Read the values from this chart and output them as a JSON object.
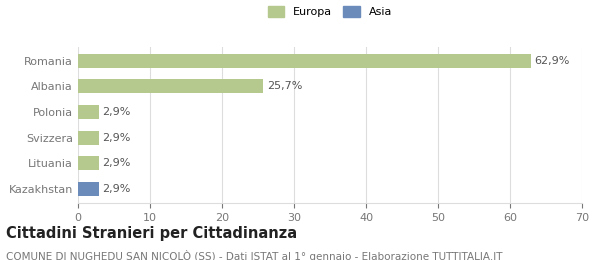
{
  "categories": [
    "Romania",
    "Albania",
    "Polonia",
    "Svizzera",
    "Lituania",
    "Kazakhstan"
  ],
  "values": [
    62.9,
    25.7,
    2.9,
    2.9,
    2.9,
    2.9
  ],
  "bar_colors": [
    "#b5c98e",
    "#b5c98e",
    "#b5c98e",
    "#b5c98e",
    "#b5c98e",
    "#6b8cba"
  ],
  "bar_labels": [
    "62,9%",
    "25,7%",
    "2,9%",
    "2,9%",
    "2,9%",
    "2,9%"
  ],
  "legend_labels": [
    "Europa",
    "Asia"
  ],
  "legend_colors": [
    "#b5c98e",
    "#6b8cba"
  ],
  "xlim": [
    0,
    70
  ],
  "xticks": [
    0,
    10,
    20,
    30,
    40,
    50,
    60,
    70
  ],
  "title": "Cittadini Stranieri per Cittadinanza",
  "subtitle": "COMUNE DI NUGHEDU SAN NICOLÒ (SS) - Dati ISTAT al 1° gennaio - Elaborazione TUTTITALIA.IT",
  "title_fontsize": 10.5,
  "subtitle_fontsize": 7.5,
  "label_fontsize": 8,
  "tick_fontsize": 8,
  "background_color": "#ffffff",
  "grid_color": "#dddddd"
}
